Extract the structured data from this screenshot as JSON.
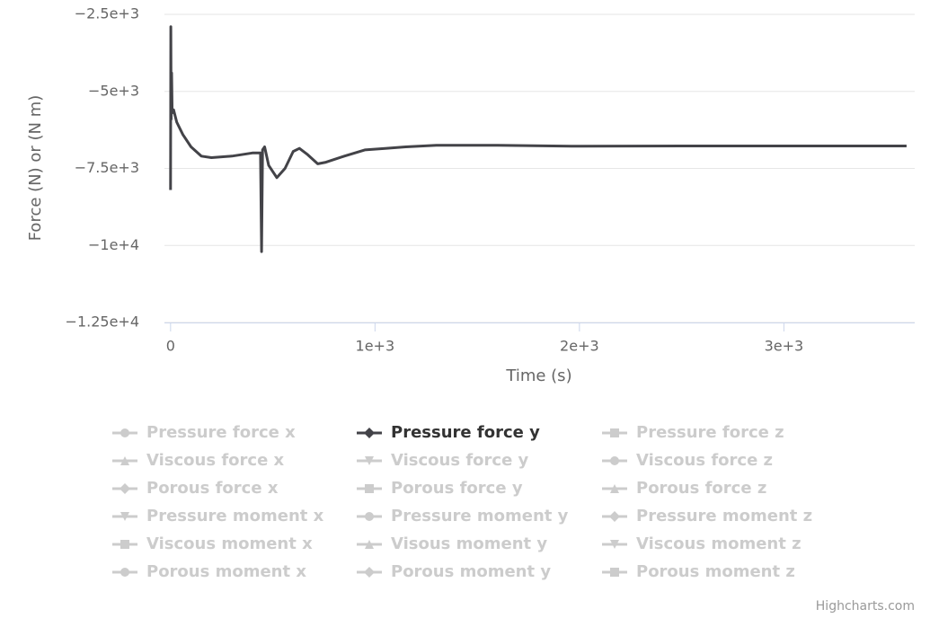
{
  "chart_data": {
    "type": "line",
    "x_axis_title": "Time (s)",
    "y_axis_title": "Force (N) or (N m)",
    "xlim": [
      -30,
      3640
    ],
    "ylim": [
      -12500,
      -2500
    ],
    "xticks": [
      0,
      {
        "value": 1000,
        "label": "1e+3"
      },
      {
        "value": 2000,
        "label": "2e+3"
      },
      {
        "value": 3000,
        "label": "3e+3"
      }
    ],
    "yticks": [
      {
        "value": -2500,
        "label": "−2.5e+3"
      },
      {
        "value": -5000,
        "label": "−5e+3"
      },
      {
        "value": -7500,
        "label": "−7.5e+3"
      },
      {
        "value": -10000,
        "label": "−1e+4"
      },
      {
        "value": -12500,
        "label": "−1.25e+4"
      }
    ],
    "grid": true,
    "legend_columns": 3,
    "legend_inactive_color": "#cccccc",
    "x": [
      0,
      1,
      3,
      5,
      8,
      15,
      30,
      60,
      100,
      150,
      200,
      300,
      400,
      440,
      445,
      450,
      460,
      480,
      520,
      560,
      600,
      630,
      670,
      720,
      760,
      850,
      950,
      1050,
      1150,
      1300,
      1600,
      2000,
      2500,
      3000,
      3600
    ],
    "series": [
      {
        "name": "Pressure force x",
        "symbol": "circle",
        "visible": false
      },
      {
        "name": "Pressure force y",
        "symbol": "diamond",
        "visible": true,
        "color": "#434348",
        "values": [
          -8200,
          -2900,
          -5900,
          -4400,
          -5700,
          -5600,
          -6000,
          -6400,
          -6800,
          -7100,
          -7150,
          -7100,
          -7000,
          -7000,
          -10200,
          -6900,
          -6800,
          -7400,
          -7800,
          -7500,
          -6950,
          -6850,
          -7050,
          -7350,
          -7300,
          -7100,
          -6900,
          -6850,
          -6800,
          -6750,
          -6750,
          -6780,
          -6770,
          -6770,
          -6770
        ]
      },
      {
        "name": "Pressure force z",
        "symbol": "square",
        "visible": false
      },
      {
        "name": "Viscous force x",
        "symbol": "triangle",
        "visible": false
      },
      {
        "name": "Viscous force y",
        "symbol": "triangle-down",
        "visible": false
      },
      {
        "name": "Viscous force z",
        "symbol": "circle",
        "visible": false
      },
      {
        "name": "Porous force x",
        "symbol": "diamond",
        "visible": false
      },
      {
        "name": "Porous force y",
        "symbol": "square",
        "visible": false
      },
      {
        "name": "Porous force z",
        "symbol": "triangle",
        "visible": false
      },
      {
        "name": "Pressure moment x",
        "symbol": "triangle-down",
        "visible": false
      },
      {
        "name": "Pressure moment y",
        "symbol": "circle",
        "visible": false
      },
      {
        "name": "Pressure moment z",
        "symbol": "diamond",
        "visible": false
      },
      {
        "name": "Viscous moment x",
        "symbol": "square",
        "visible": false
      },
      {
        "name": "Visous moment y",
        "symbol": "triangle",
        "visible": false
      },
      {
        "name": "Viscous moment z",
        "symbol": "triangle-down",
        "visible": false
      },
      {
        "name": "Porous moment x",
        "symbol": "circle",
        "visible": false
      },
      {
        "name": "Porous moment y",
        "symbol": "diamond",
        "visible": false
      },
      {
        "name": "Porous moment z",
        "symbol": "square",
        "visible": false
      }
    ],
    "credits": "Highcharts.com"
  }
}
